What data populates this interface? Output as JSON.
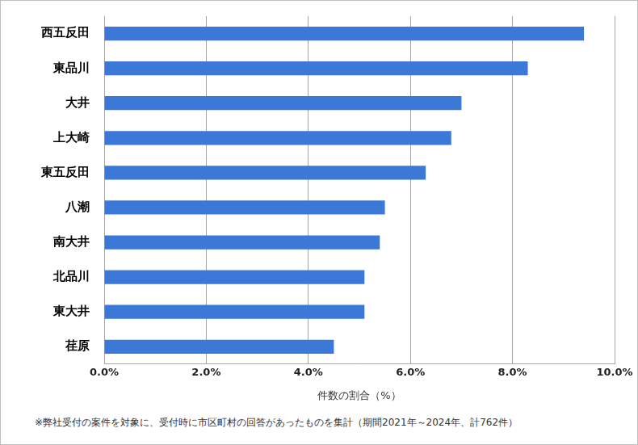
{
  "chart_data": {
    "type": "bar",
    "orientation": "horizontal",
    "categories": [
      "西五反田",
      "東品川",
      "大井",
      "上大崎",
      "東五反田",
      "八潮",
      "南大井",
      "北品川",
      "東大井",
      "荏原"
    ],
    "values": [
      9.4,
      8.3,
      7.0,
      6.8,
      6.3,
      5.5,
      5.4,
      5.1,
      5.1,
      4.5
    ],
    "color": "#3c78d8",
    "xlabel": "件数の割合（%）",
    "xlim": [
      0,
      10
    ],
    "xticks": [
      {
        "value": 0,
        "label": "0.0%"
      },
      {
        "value": 2,
        "label": "2.0%"
      },
      {
        "value": 4,
        "label": "4.0%"
      },
      {
        "value": 6,
        "label": "6.0%"
      },
      {
        "value": 8,
        "label": "8.0%"
      },
      {
        "value": 10,
        "label": "10.0%"
      }
    ],
    "grid": true,
    "annotations": [
      "※弊社受付の案件を対象に、受付時に市区町村の回答があったものを集計（期間2021年～2024年、計762件）"
    ]
  }
}
